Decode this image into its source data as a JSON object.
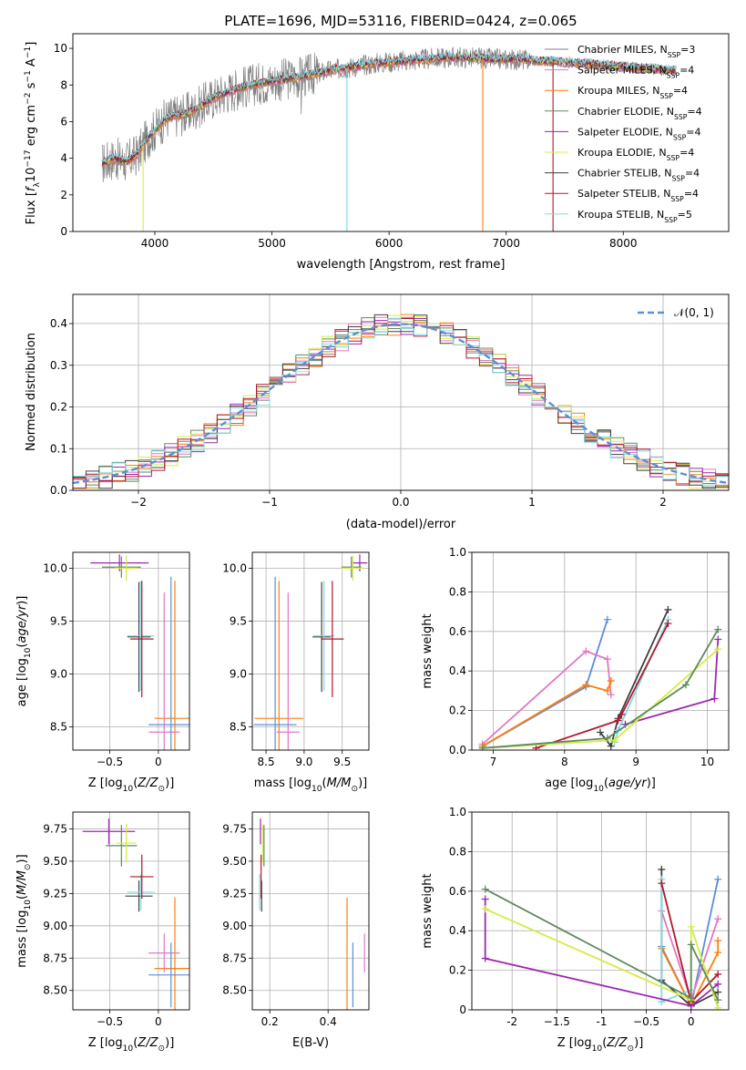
{
  "figure": {
    "title": "PLATE=1696, MJD=53116, FIBERID=0424, z=0.065"
  },
  "chart_data": [
    {
      "id": "spectrum",
      "type": "line",
      "xlabel": "wavelength [Angstrom, rest frame]",
      "ylabel": "Flux [f_λ 10^-17 erg cm^-2 s^-1 A^-1]",
      "xlim": [
        3300,
        8900
      ],
      "ylim": [
        0,
        10.8
      ],
      "xticks": [
        4000,
        5000,
        6000,
        7000,
        8000
      ],
      "yticks": [
        0,
        2,
        4,
        6,
        8,
        10
      ],
      "legend_position": "top-right",
      "series": [
        {
          "name": "Chabrier MILES, N_SSP=3",
          "color": "#7f7f7f"
        },
        {
          "name": "Salpeter MILES, N_SSP=4",
          "color": "#e377c2"
        },
        {
          "name": "Kroupa MILES, N_SSP=4",
          "color": "#ff7f0e"
        },
        {
          "name": "Chabrier ELODIE, N_SSP=4",
          "color": "#5e8a5e"
        },
        {
          "name": "Salpeter ELODIE, N_SSP=4",
          "color": "#9c27b0"
        },
        {
          "name": "Kroupa ELODIE, N_SSP=4",
          "color": "#d4ec45"
        },
        {
          "name": "Chabrier STELIB, N_SSP=4",
          "color": "#404040"
        },
        {
          "name": "Salpeter STELIB, N_SSP=4",
          "color": "#b2182b"
        },
        {
          "name": "Kroupa STELIB, N_SSP=5",
          "color": "#7fdbe6"
        }
      ],
      "data_curve": {
        "x": [
          3550,
          3650,
          3750,
          3850,
          3950,
          4100,
          4300,
          4500,
          4700,
          4900,
          5100,
          5300,
          5500,
          5700,
          5900,
          6100,
          6300,
          6500,
          6700,
          6900,
          7100,
          7300,
          7400,
          7600,
          7800,
          8000,
          8200,
          8400
        ],
        "y": [
          3.7,
          4.0,
          3.8,
          4.2,
          5.2,
          6.2,
          6.5,
          7.3,
          7.8,
          8.1,
          8.3,
          8.5,
          8.8,
          9.0,
          9.2,
          9.3,
          9.4,
          9.5,
          9.5,
          9.4,
          9.4,
          9.3,
          9.3,
          9.2,
          9.1,
          9.0,
          8.9,
          8.8
        ]
      }
    },
    {
      "id": "residuals",
      "type": "line",
      "xlabel": "(data-model)/error",
      "ylabel": "Normed distribution",
      "xlim": [
        -2.5,
        2.5
      ],
      "ylim": [
        0,
        0.47
      ],
      "xticks": [
        -2,
        -1,
        0,
        1,
        2
      ],
      "yticks": [
        0.0,
        0.1,
        0.2,
        0.3,
        0.4
      ],
      "grid": true,
      "legend_position": "top-right",
      "gaussian": {
        "name": "N(0,1)",
        "mean": 0,
        "sigma": 1,
        "color": "#5b8fd6"
      }
    },
    {
      "id": "age-vs-Z",
      "type": "scatter",
      "xlabel": "Z [log10(Z/Z⊙)]",
      "ylabel": "age [log10(age/yr)]",
      "xlim": [
        -0.88,
        0.32
      ],
      "ylim": [
        8.28,
        10.15
      ],
      "xticks": [
        -0.5,
        0.0
      ],
      "yticks": [
        8.5,
        9.0,
        9.5,
        10.0
      ],
      "grid": true,
      "errorbars": [
        {
          "x": -0.4,
          "xerr": 0.3,
          "y": 10.05,
          "yerr": 0.08,
          "color": "#9c27b0"
        },
        {
          "x": -0.38,
          "xerr": 0.2,
          "y": 10.01,
          "yerr": 0.1,
          "color": "#5e8a5e"
        },
        {
          "x": -0.33,
          "xerr": 0.12,
          "y": 10.0,
          "yerr": 0.12,
          "color": "#d4ec45"
        },
        {
          "x": -0.2,
          "xerr": 0.12,
          "y": 9.35,
          "yerr": 0.52,
          "color": "#404040"
        },
        {
          "x": -0.18,
          "xerr": 0.14,
          "y": 9.36,
          "yerr": 0.52,
          "color": "#7fdbe6"
        },
        {
          "x": -0.17,
          "xerr": 0.12,
          "y": 9.33,
          "yerr": 0.55,
          "color": "#b2182b"
        },
        {
          "x": 0.17,
          "xerr": 0.21,
          "y": 8.58,
          "yerr": 1.3,
          "color": "#ff7f0e"
        },
        {
          "x": 0.06,
          "xerr": 0.16,
          "y": 8.45,
          "yerr": 1.32,
          "color": "#e377c2"
        },
        {
          "x": 0.13,
          "xerr": 0.23,
          "y": 8.52,
          "yerr": 1.4,
          "color": "#5b8fd6"
        }
      ]
    },
    {
      "id": "age-vs-mass",
      "type": "scatter",
      "xlabel": "mass [log10(M/M⊙)]",
      "ylabel": "",
      "xlim": [
        8.32,
        9.85
      ],
      "ylim": [
        8.28,
        10.15
      ],
      "xticks": [
        8.5,
        9.0,
        9.5
      ],
      "yticks": [
        8.5,
        9.0,
        9.5,
        10.0
      ],
      "grid": true,
      "errorbars": [
        {
          "x": 9.73,
          "xerr": 0.1,
          "y": 10.05,
          "yerr": 0.08,
          "color": "#9c27b0"
        },
        {
          "x": 9.62,
          "xerr": 0.13,
          "y": 10.01,
          "yerr": 0.1,
          "color": "#5e8a5e"
        },
        {
          "x": 9.64,
          "xerr": 0.15,
          "y": 10.0,
          "yerr": 0.12,
          "color": "#d4ec45"
        },
        {
          "x": 9.23,
          "xerr": 0.12,
          "y": 9.35,
          "yerr": 0.52,
          "color": "#404040"
        },
        {
          "x": 9.26,
          "xerr": 0.14,
          "y": 9.36,
          "yerr": 0.52,
          "color": "#7fdbe6"
        },
        {
          "x": 9.37,
          "xerr": 0.15,
          "y": 9.33,
          "yerr": 0.55,
          "color": "#b2182b"
        },
        {
          "x": 8.67,
          "xerr": 0.32,
          "y": 8.58,
          "yerr": 1.3,
          "color": "#ff7f0e"
        },
        {
          "x": 8.79,
          "xerr": 0.15,
          "y": 8.45,
          "yerr": 1.32,
          "color": "#e377c2"
        },
        {
          "x": 8.62,
          "xerr": 0.28,
          "y": 8.52,
          "yerr": 1.4,
          "color": "#5b8fd6"
        }
      ]
    },
    {
      "id": "weight-vs-age",
      "type": "line",
      "xlabel": "age [log10(age/yr)]",
      "ylabel": "mass weight",
      "xlim": [
        6.7,
        10.3
      ],
      "ylim": [
        0.0,
        1.0
      ],
      "xticks": [
        7,
        8,
        9,
        10
      ],
      "yticks": [
        0.0,
        0.2,
        0.4,
        0.6,
        0.8,
        1.0
      ],
      "grid": true,
      "series": [
        {
          "color": "#5b8fd6",
          "x": [
            6.85,
            8.3,
            8.6
          ],
          "y": [
            0.02,
            0.32,
            0.66
          ]
        },
        {
          "color": "#e377c2",
          "x": [
            6.85,
            8.3,
            8.6,
            8.65
          ],
          "y": [
            0.03,
            0.5,
            0.46,
            0.28
          ]
        },
        {
          "color": "#ff7f0e",
          "x": [
            6.85,
            8.3,
            8.6,
            8.65
          ],
          "y": [
            0.02,
            0.33,
            0.3,
            0.35
          ]
        },
        {
          "color": "#404040",
          "x": [
            8.5,
            8.65,
            8.75,
            9.45
          ],
          "y": [
            0.09,
            0.02,
            0.16,
            0.71
          ]
        },
        {
          "color": "#7fdbe6",
          "x": [
            8.7,
            8.75,
            9.45
          ],
          "y": [
            0.04,
            0.1,
            0.66
          ]
        },
        {
          "color": "#b2182b",
          "x": [
            7.6,
            8.75,
            8.8,
            9.45
          ],
          "y": [
            0.01,
            0.15,
            0.18,
            0.64
          ]
        },
        {
          "color": "#9c27b0",
          "x": [
            8.85,
            10.1,
            10.15
          ],
          "y": [
            0.13,
            0.26,
            0.56
          ]
        },
        {
          "color": "#d4ec45",
          "x": [
            6.85,
            8.7,
            10.15
          ],
          "y": [
            0.01,
            0.05,
            0.51
          ]
        },
        {
          "color": "#5e8a5e",
          "x": [
            6.85,
            8.6,
            9.7,
            10.15
          ],
          "y": [
            0.01,
            0.06,
            0.33,
            0.61
          ]
        }
      ]
    },
    {
      "id": "mass-vs-Z",
      "type": "scatter",
      "xlabel": "Z [log10(Z/Z⊙)]",
      "ylabel": "mass [log10(M/M⊙)]",
      "xlim": [
        -0.88,
        0.32
      ],
      "ylim": [
        8.35,
        9.88
      ],
      "xticks": [
        -0.5,
        0.0
      ],
      "yticks": [
        8.5,
        8.75,
        9.0,
        9.25,
        9.5,
        9.75
      ],
      "grid": true,
      "errorbars": [
        {
          "x": -0.51,
          "xerr": 0.27,
          "y": 9.73,
          "yerr": 0.1,
          "color": "#9c27b0"
        },
        {
          "x": -0.38,
          "xerr": 0.16,
          "y": 9.62,
          "yerr": 0.16,
          "color": "#5e8a5e"
        },
        {
          "x": -0.33,
          "xerr": 0.1,
          "y": 9.64,
          "yerr": 0.15,
          "color": "#d4ec45"
        },
        {
          "x": -0.2,
          "xerr": 0.14,
          "y": 9.23,
          "yerr": 0.12,
          "color": "#404040"
        },
        {
          "x": -0.18,
          "xerr": 0.14,
          "y": 9.26,
          "yerr": 0.14,
          "color": "#7fdbe6"
        },
        {
          "x": -0.17,
          "xerr": 0.12,
          "y": 9.38,
          "yerr": 0.17,
          "color": "#b2182b"
        },
        {
          "x": 0.17,
          "xerr": 0.21,
          "y": 8.67,
          "yerr": 0.55,
          "color": "#ff7f0e"
        },
        {
          "x": 0.06,
          "xerr": 0.16,
          "y": 8.79,
          "yerr": 0.15,
          "color": "#e377c2"
        },
        {
          "x": 0.13,
          "xerr": 0.23,
          "y": 8.62,
          "yerr": 0.25,
          "color": "#5b8fd6"
        }
      ]
    },
    {
      "id": "mass-vs-EBV",
      "type": "scatter",
      "xlabel": "E(B-V)",
      "ylabel": "",
      "xlim": [
        0.14,
        0.54
      ],
      "ylim": [
        8.35,
        9.88
      ],
      "xticks": [
        0.2,
        0.4
      ],
      "yticks": [
        8.5,
        8.75,
        9.0,
        9.25,
        9.5,
        9.75
      ],
      "grid": true,
      "errorbars": [
        {
          "x": 0.168,
          "y": 9.73,
          "yerr": 0.1,
          "color": "#9c27b0"
        },
        {
          "x": 0.18,
          "y": 9.62,
          "yerr": 0.16,
          "color": "#5e8a5e"
        },
        {
          "x": 0.175,
          "y": 9.64,
          "yerr": 0.15,
          "color": "#d4ec45"
        },
        {
          "x": 0.172,
          "y": 9.23,
          "yerr": 0.12,
          "color": "#404040"
        },
        {
          "x": 0.165,
          "y": 9.26,
          "yerr": 0.14,
          "color": "#7fdbe6"
        },
        {
          "x": 0.17,
          "y": 9.38,
          "yerr": 0.17,
          "color": "#b2182b"
        },
        {
          "x": 0.465,
          "y": 8.67,
          "yerr": 0.55,
          "color": "#ff7f0e"
        },
        {
          "x": 0.525,
          "y": 8.79,
          "yerr": 0.15,
          "color": "#e377c2"
        },
        {
          "x": 0.485,
          "y": 8.62,
          "yerr": 0.25,
          "color": "#5b8fd6"
        }
      ]
    },
    {
      "id": "weight-vs-Z",
      "type": "line",
      "xlabel": "Z [log10(Z/Z⊙)]",
      "ylabel": "mass weight",
      "xlim": [
        -2.45,
        0.42
      ],
      "ylim": [
        0.0,
        1.0
      ],
      "xticks": [
        -2.0,
        -1.5,
        -1.0,
        -0.5,
        0.0
      ],
      "yticks": [
        0.0,
        0.2,
        0.4,
        0.6,
        0.8,
        1.0
      ],
      "grid": true,
      "series": [
        {
          "color": "#5b8fd6",
          "x": [
            -0.33,
            0.0,
            0.3
          ],
          "y": [
            0.32,
            0.02,
            0.66
          ]
        },
        {
          "color": "#e377c2",
          "x": [
            -0.33,
            0.0,
            0.3
          ],
          "y": [
            0.5,
            0.05,
            0.46
          ]
        },
        {
          "color": "#ff7f0e",
          "x": [
            -0.33,
            0.0,
            0.3,
            0.3
          ],
          "y": [
            0.31,
            0.02,
            0.29,
            0.35
          ]
        },
        {
          "color": "#404040",
          "x": [
            -0.33,
            -0.33,
            0.0,
            0.3
          ],
          "y": [
            0.71,
            0.15,
            0.02,
            0.09
          ]
        },
        {
          "color": "#7fdbe6",
          "x": [
            -0.33,
            -0.33,
            0.0
          ],
          "y": [
            0.66,
            0.04,
            0.1
          ]
        },
        {
          "color": "#b2182b",
          "x": [
            -0.33,
            0.0,
            0.3
          ],
          "y": [
            0.64,
            0.04,
            0.18
          ]
        },
        {
          "color": "#9c27b0",
          "x": [
            -2.3,
            -2.3,
            0.0,
            0.3
          ],
          "y": [
            0.56,
            0.26,
            0.02,
            0.13
          ]
        },
        {
          "color": "#d4ec45",
          "x": [
            -2.3,
            0.0,
            0.0,
            0.3
          ],
          "y": [
            0.51,
            0.05,
            0.42,
            0.01
          ]
        },
        {
          "color": "#5e8a5e",
          "x": [
            -2.3,
            0.0,
            0.0,
            0.3
          ],
          "y": [
            0.61,
            0.06,
            0.33,
            0.05
          ]
        }
      ]
    }
  ]
}
